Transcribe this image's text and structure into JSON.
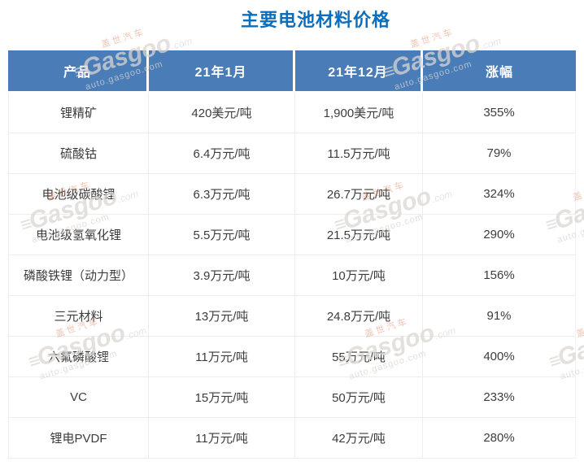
{
  "title": "主要电池材料价格",
  "watermark": {
    "cn_text": "盖世汽车",
    "logo_glyph": "≡",
    "brand": "Gasgoo",
    "com": ".com",
    "url": "auto.gasgoo.com"
  },
  "table": {
    "columns": [
      "产品",
      "21年1月",
      "21年12月",
      "涨幅"
    ],
    "rows": [
      [
        "锂精矿",
        "420美元/吨",
        "1,900美元/吨",
        "355%"
      ],
      [
        "硫酸钴",
        "6.4万元/吨",
        "11.5万元/吨",
        "79%"
      ],
      [
        "电池级碳酸锂",
        "6.3万元/吨",
        "26.7万元/吨",
        "324%"
      ],
      [
        "电池级氢氧化锂",
        "5.5万元/吨",
        "21.5万元/吨",
        "290%"
      ],
      [
        "磷酸铁锂（动力型）",
        "3.9万元/吨",
        "10万元/吨",
        "156%"
      ],
      [
        "三元材料",
        "13万元/吨",
        "24.8万元/吨",
        "91%"
      ],
      [
        "六氟磷酸锂",
        "11万元/吨",
        "55万元/吨",
        "400%"
      ],
      [
        "VC",
        "15万元/吨",
        "50万元/吨",
        "233%"
      ],
      [
        "锂电PVDF",
        "11万元/吨",
        "42万元/吨",
        "280%"
      ]
    ]
  },
  "colors": {
    "title_blue": "#0a6ebc",
    "header_bg": "#4a7db8",
    "header_text": "#ffffff",
    "body_text": "#3c3c3c",
    "border": "#ededed"
  }
}
